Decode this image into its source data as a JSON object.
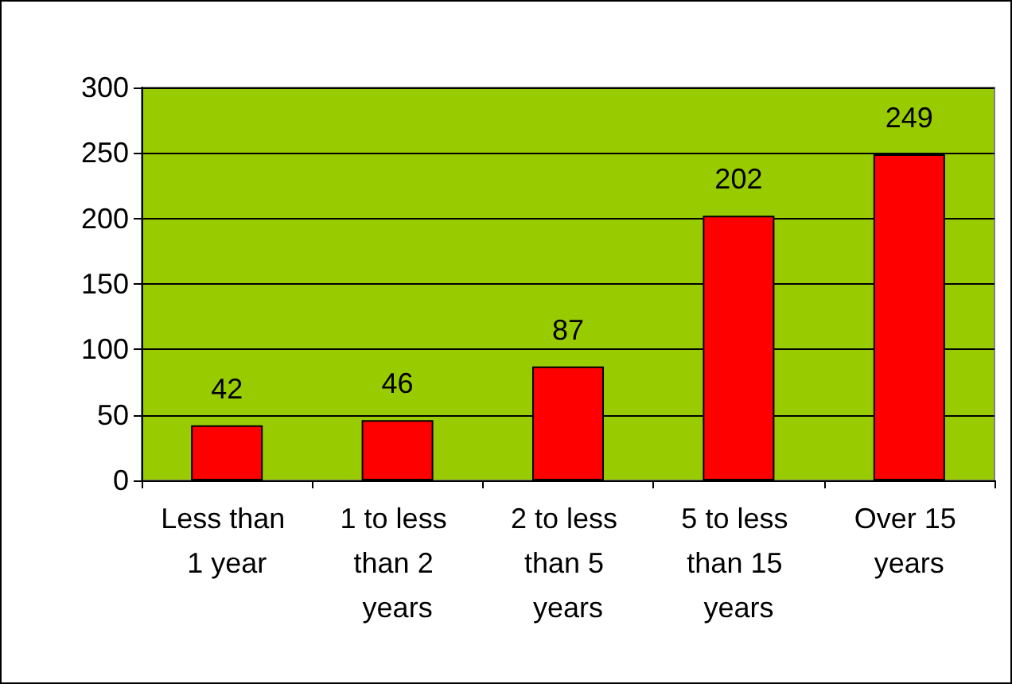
{
  "chart_data": {
    "type": "bar",
    "categories": [
      "Less than 1 year",
      "1 to less than 2 years",
      "2 to less than 5 years",
      "5 to less than 15 years",
      "Over 15 years"
    ],
    "values": [
      42,
      46,
      87,
      202,
      249
    ],
    "color": "#ff0000",
    "ylim": [
      0,
      300
    ],
    "yticks": [
      0,
      50,
      100,
      150,
      200,
      250,
      300
    ],
    "grid": "y",
    "data_labels": true
  }
}
